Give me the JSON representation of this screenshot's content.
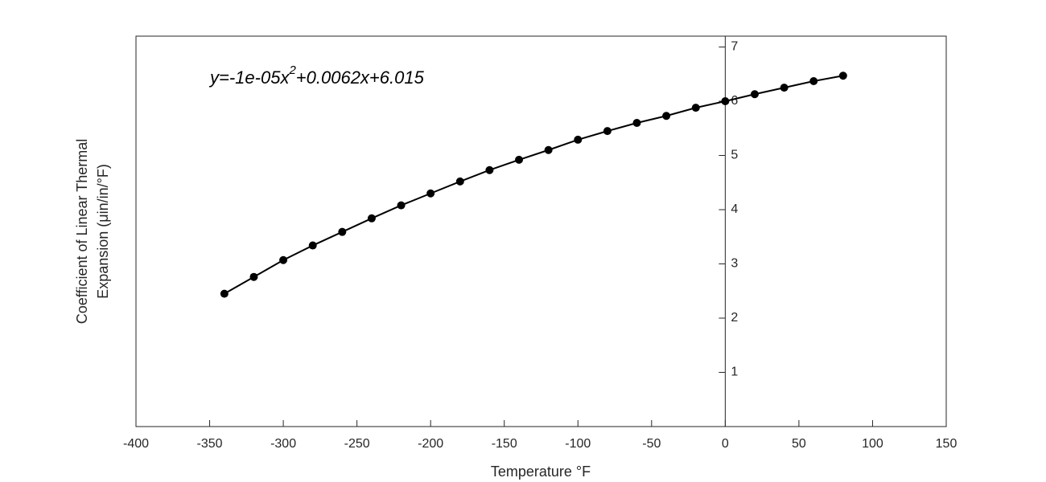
{
  "chart_data": {
    "type": "line",
    "annotation": [
      "y=-1e-05x",
      "2",
      "+0.0062x+6.015"
    ],
    "xlabel": "Temperature °F",
    "ylabel": [
      "Coefficient of Linear Thermal",
      "Expansion (μin/in/°F)"
    ],
    "x": [
      -340,
      -320,
      -300,
      -280,
      -260,
      -240,
      -220,
      -200,
      -180,
      -160,
      -140,
      -120,
      -100,
      -80,
      -60,
      -40,
      -20,
      0,
      20,
      40,
      60,
      80
    ],
    "series": [
      {
        "color": "#000000",
        "values": [
          2.45,
          2.76,
          3.07,
          3.34,
          3.59,
          3.84,
          4.08,
          4.3,
          4.52,
          4.73,
          4.92,
          5.1,
          5.29,
          5.45,
          5.6,
          5.73,
          5.88,
          6.0,
          6.13,
          6.25,
          6.37,
          6.47
        ]
      }
    ],
    "xlim": [
      -400,
      150
    ],
    "xticks": [
      -400,
      -350,
      -300,
      -250,
      -200,
      -150,
      -100,
      -50,
      0,
      50,
      100,
      150
    ],
    "ylim": [
      0,
      7.2
    ],
    "yticks": [
      1,
      2,
      3,
      4,
      5,
      6,
      7
    ],
    "markers": true
  }
}
